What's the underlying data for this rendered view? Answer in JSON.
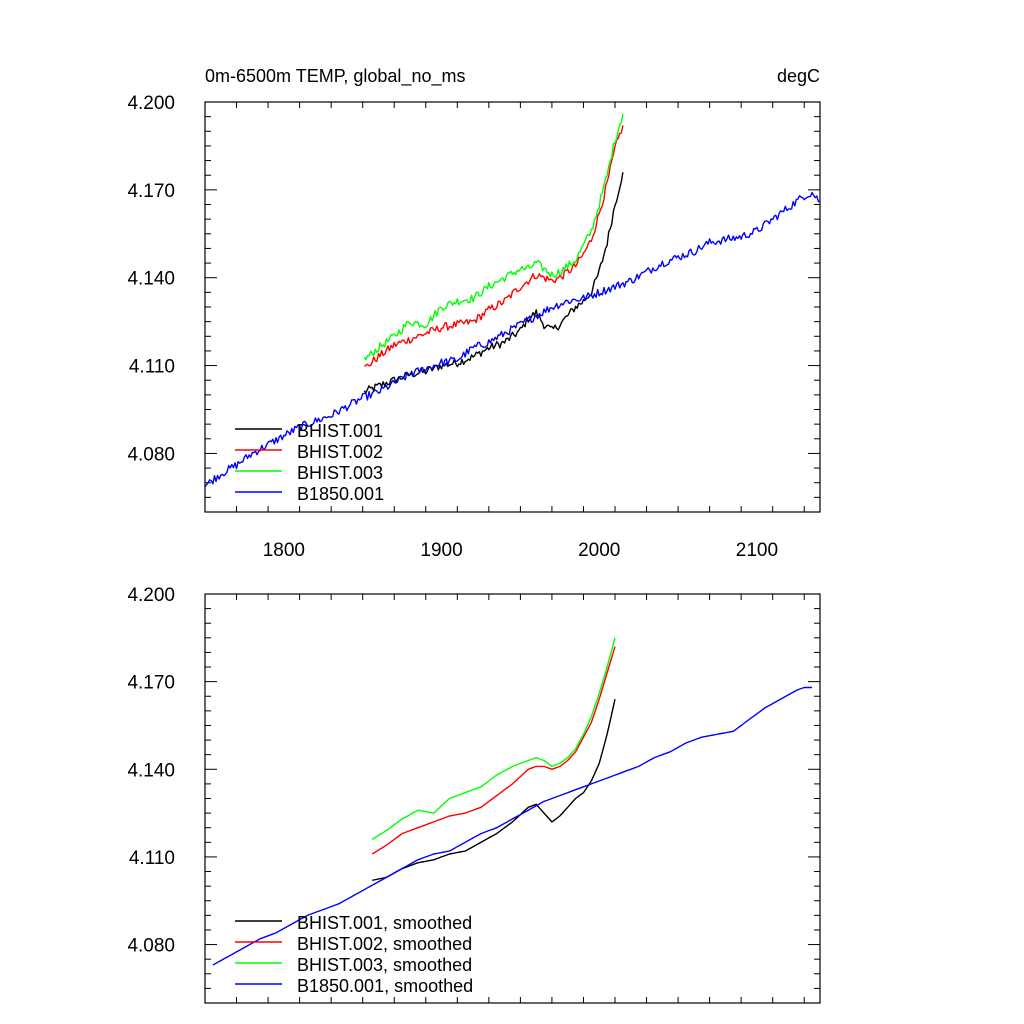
{
  "chart_data": [
    {
      "type": "line",
      "title": "0m-6500m TEMP, global_no_ms",
      "units": "degC",
      "xlim": [
        1750,
        2140
      ],
      "ylim": [
        4.06,
        4.2
      ],
      "xticks": [
        1800,
        1900,
        2000,
        2100
      ],
      "yticks": [
        4.08,
        4.11,
        4.14,
        4.17,
        4.2
      ],
      "xtick_labels": [
        "1800",
        "1900",
        "2000",
        "2100"
      ],
      "ytick_labels": [
        "4.080",
        "4.110",
        "4.140",
        "4.170",
        "4.200"
      ],
      "legend_position": "bottom-left",
      "noisy": true,
      "series": [
        {
          "name": "BHIST.001",
          "color": "#000000",
          "x": [
            1851,
            1860,
            1870,
            1880,
            1890,
            1900,
            1910,
            1920,
            1930,
            1940,
            1950,
            1955,
            1960,
            1965,
            1970,
            1975,
            1980,
            1985,
            1990,
            1995,
            2000,
            2005,
            2010,
            2015
          ],
          "y": [
            4.101,
            4.103,
            4.105,
            4.107,
            4.108,
            4.11,
            4.111,
            4.113,
            4.116,
            4.118,
            4.122,
            4.126,
            4.128,
            4.124,
            4.122,
            4.124,
            4.127,
            4.13,
            4.132,
            4.135,
            4.142,
            4.152,
            4.165,
            4.176
          ]
        },
        {
          "name": "BHIST.002",
          "color": "#ff0000",
          "x": [
            1851,
            1860,
            1870,
            1880,
            1890,
            1900,
            1910,
            1920,
            1930,
            1940,
            1950,
            1955,
            1960,
            1965,
            1970,
            1975,
            1980,
            1985,
            1990,
            1995,
            2000,
            2005,
            2010,
            2015
          ],
          "y": [
            4.109,
            4.113,
            4.117,
            4.119,
            4.121,
            4.123,
            4.124,
            4.125,
            4.129,
            4.132,
            4.137,
            4.139,
            4.141,
            4.14,
            4.139,
            4.14,
            4.142,
            4.144,
            4.148,
            4.153,
            4.162,
            4.172,
            4.184,
            4.192
          ]
        },
        {
          "name": "BHIST.003",
          "color": "#00ff00",
          "x": [
            1851,
            1860,
            1870,
            1880,
            1890,
            1900,
            1910,
            1920,
            1930,
            1940,
            1950,
            1955,
            1960,
            1965,
            1970,
            1975,
            1980,
            1985,
            1990,
            1995,
            2000,
            2005,
            2010,
            2015
          ],
          "y": [
            4.112,
            4.116,
            4.12,
            4.125,
            4.124,
            4.13,
            4.132,
            4.133,
            4.137,
            4.14,
            4.143,
            4.143,
            4.145,
            4.143,
            4.141,
            4.142,
            4.144,
            4.146,
            4.151,
            4.156,
            4.165,
            4.175,
            4.187,
            4.196
          ]
        },
        {
          "name": "B1850.001",
          "color": "#0000ff",
          "x": [
            1750,
            1760,
            1770,
            1780,
            1790,
            1800,
            1810,
            1820,
            1830,
            1840,
            1850,
            1860,
            1870,
            1880,
            1890,
            1900,
            1910,
            1920,
            1930,
            1940,
            1950,
            1960,
            1970,
            1980,
            1990,
            2000,
            2010,
            2020,
            2030,
            2040,
            2050,
            2060,
            2070,
            2080,
            2090,
            2100,
            2110,
            2120,
            2130,
            2135,
            2140
          ],
          "y": [
            4.069,
            4.073,
            4.076,
            4.08,
            4.083,
            4.086,
            4.089,
            4.091,
            4.093,
            4.096,
            4.099,
            4.101,
            4.104,
            4.107,
            4.109,
            4.111,
            4.112,
            4.116,
            4.118,
            4.121,
            4.124,
            4.127,
            4.13,
            4.132,
            4.133,
            4.135,
            4.137,
            4.139,
            4.142,
            4.145,
            4.147,
            4.149,
            4.152,
            4.153,
            4.154,
            4.156,
            4.16,
            4.164,
            4.168,
            4.169,
            4.166
          ]
        }
      ]
    },
    {
      "type": "line",
      "xlim": [
        1750,
        2140
      ],
      "ylim": [
        4.06,
        4.2
      ],
      "xticks": [
        1800,
        1900,
        2000,
        2100
      ],
      "yticks": [
        4.08,
        4.11,
        4.14,
        4.17,
        4.2
      ],
      "ytick_labels": [
        "4.080",
        "4.110",
        "4.140",
        "4.170",
        "4.200"
      ],
      "legend_position": "bottom-left",
      "noisy": false,
      "series": [
        {
          "name": "BHIST.001, smoothed",
          "color": "#000000",
          "x": [
            1856,
            1865,
            1875,
            1885,
            1895,
            1905,
            1915,
            1925,
            1935,
            1945,
            1955,
            1960,
            1965,
            1970,
            1975,
            1980,
            1985,
            1990,
            1995,
            2000,
            2005,
            2010
          ],
          "y": [
            4.102,
            4.103,
            4.106,
            4.108,
            4.109,
            4.111,
            4.112,
            4.115,
            4.118,
            4.122,
            4.127,
            4.128,
            4.125,
            4.122,
            4.124,
            4.127,
            4.13,
            4.132,
            4.136,
            4.142,
            4.152,
            4.164
          ]
        },
        {
          "name": "BHIST.002, smoothed",
          "color": "#ff0000",
          "x": [
            1856,
            1865,
            1875,
            1885,
            1895,
            1905,
            1915,
            1925,
            1935,
            1945,
            1955,
            1960,
            1965,
            1970,
            1975,
            1980,
            1985,
            1990,
            1995,
            2000,
            2005,
            2010
          ],
          "y": [
            4.111,
            4.114,
            4.118,
            4.12,
            4.122,
            4.124,
            4.125,
            4.127,
            4.131,
            4.135,
            4.14,
            4.141,
            4.141,
            4.14,
            4.141,
            4.143,
            4.146,
            4.151,
            4.156,
            4.164,
            4.173,
            4.182
          ]
        },
        {
          "name": "BHIST.003, smoothed",
          "color": "#00ff00",
          "x": [
            1856,
            1865,
            1875,
            1885,
            1895,
            1905,
            1915,
            1925,
            1935,
            1945,
            1955,
            1960,
            1965,
            1970,
            1975,
            1980,
            1985,
            1990,
            1995,
            2000,
            2005,
            2010
          ],
          "y": [
            4.116,
            4.119,
            4.123,
            4.126,
            4.125,
            4.13,
            4.132,
            4.134,
            4.138,
            4.141,
            4.143,
            4.144,
            4.143,
            4.141,
            4.142,
            4.144,
            4.147,
            4.152,
            4.158,
            4.166,
            4.175,
            4.185
          ]
        },
        {
          "name": "B1850.001, smoothed",
          "color": "#0000ff",
          "x": [
            1755,
            1765,
            1775,
            1785,
            1795,
            1805,
            1815,
            1825,
            1835,
            1845,
            1855,
            1865,
            1875,
            1885,
            1895,
            1905,
            1915,
            1925,
            1935,
            1945,
            1955,
            1965,
            1975,
            1985,
            1995,
            2005,
            2015,
            2025,
            2035,
            2045,
            2055,
            2065,
            2075,
            2085,
            2095,
            2105,
            2115,
            2125,
            2130,
            2135
          ],
          "y": [
            4.073,
            4.076,
            4.079,
            4.082,
            4.084,
            4.087,
            4.09,
            4.092,
            4.094,
            4.097,
            4.1,
            4.103,
            4.106,
            4.109,
            4.111,
            4.112,
            4.115,
            4.118,
            4.12,
            4.123,
            4.126,
            4.129,
            4.131,
            4.133,
            4.135,
            4.137,
            4.139,
            4.141,
            4.144,
            4.146,
            4.149,
            4.151,
            4.152,
            4.153,
            4.157,
            4.161,
            4.164,
            4.167,
            4.168,
            4.168
          ]
        }
      ]
    }
  ]
}
